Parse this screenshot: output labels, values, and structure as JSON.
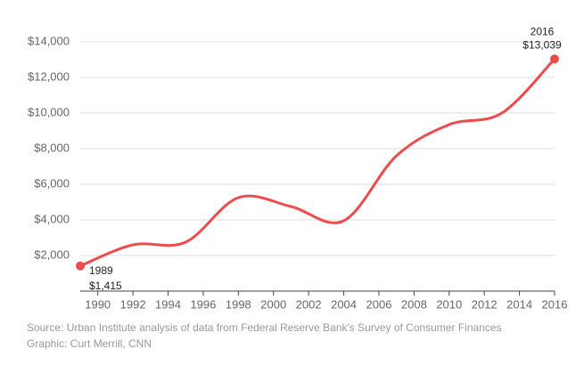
{
  "chart_data": {
    "type": "line",
    "x": [
      1989,
      1992,
      1995,
      1998,
      2001,
      2004,
      2007,
      2010,
      2013,
      2016
    ],
    "series": [
      {
        "color": "#ef4b4b",
        "values": [
          1415,
          2600,
          2750,
          5250,
          4750,
          3950,
          7600,
          9350,
          10000,
          13039
        ],
        "value_labels": [
          "$1,415",
          null,
          null,
          null,
          null,
          null,
          null,
          null,
          null,
          "$13,039"
        ]
      }
    ],
    "xlim": [
      1989,
      2016
    ],
    "xticks": [
      1990,
      1992,
      1994,
      1996,
      1998,
      2000,
      2002,
      2004,
      2006,
      2008,
      2010,
      2012,
      2014,
      2016
    ],
    "ylim": [
      0,
      14000
    ],
    "yticks": [
      {
        "value": 2000,
        "label": "$2,000"
      },
      {
        "value": 4000,
        "label": "$4,000"
      },
      {
        "value": 6000,
        "label": "$6,000"
      },
      {
        "value": 8000,
        "label": "$8,000"
      },
      {
        "value": 10000,
        "label": "$10,000"
      },
      {
        "value": 12000,
        "label": "$12,000"
      },
      {
        "value": 14000,
        "label": "$14,000"
      }
    ],
    "grid": true,
    "source": "Source: Urban Institute analysis of data from Federal Reserve Bank's Survey of Consumer Finances",
    "credit": "Graphic: Curt Merrill, CNN"
  }
}
